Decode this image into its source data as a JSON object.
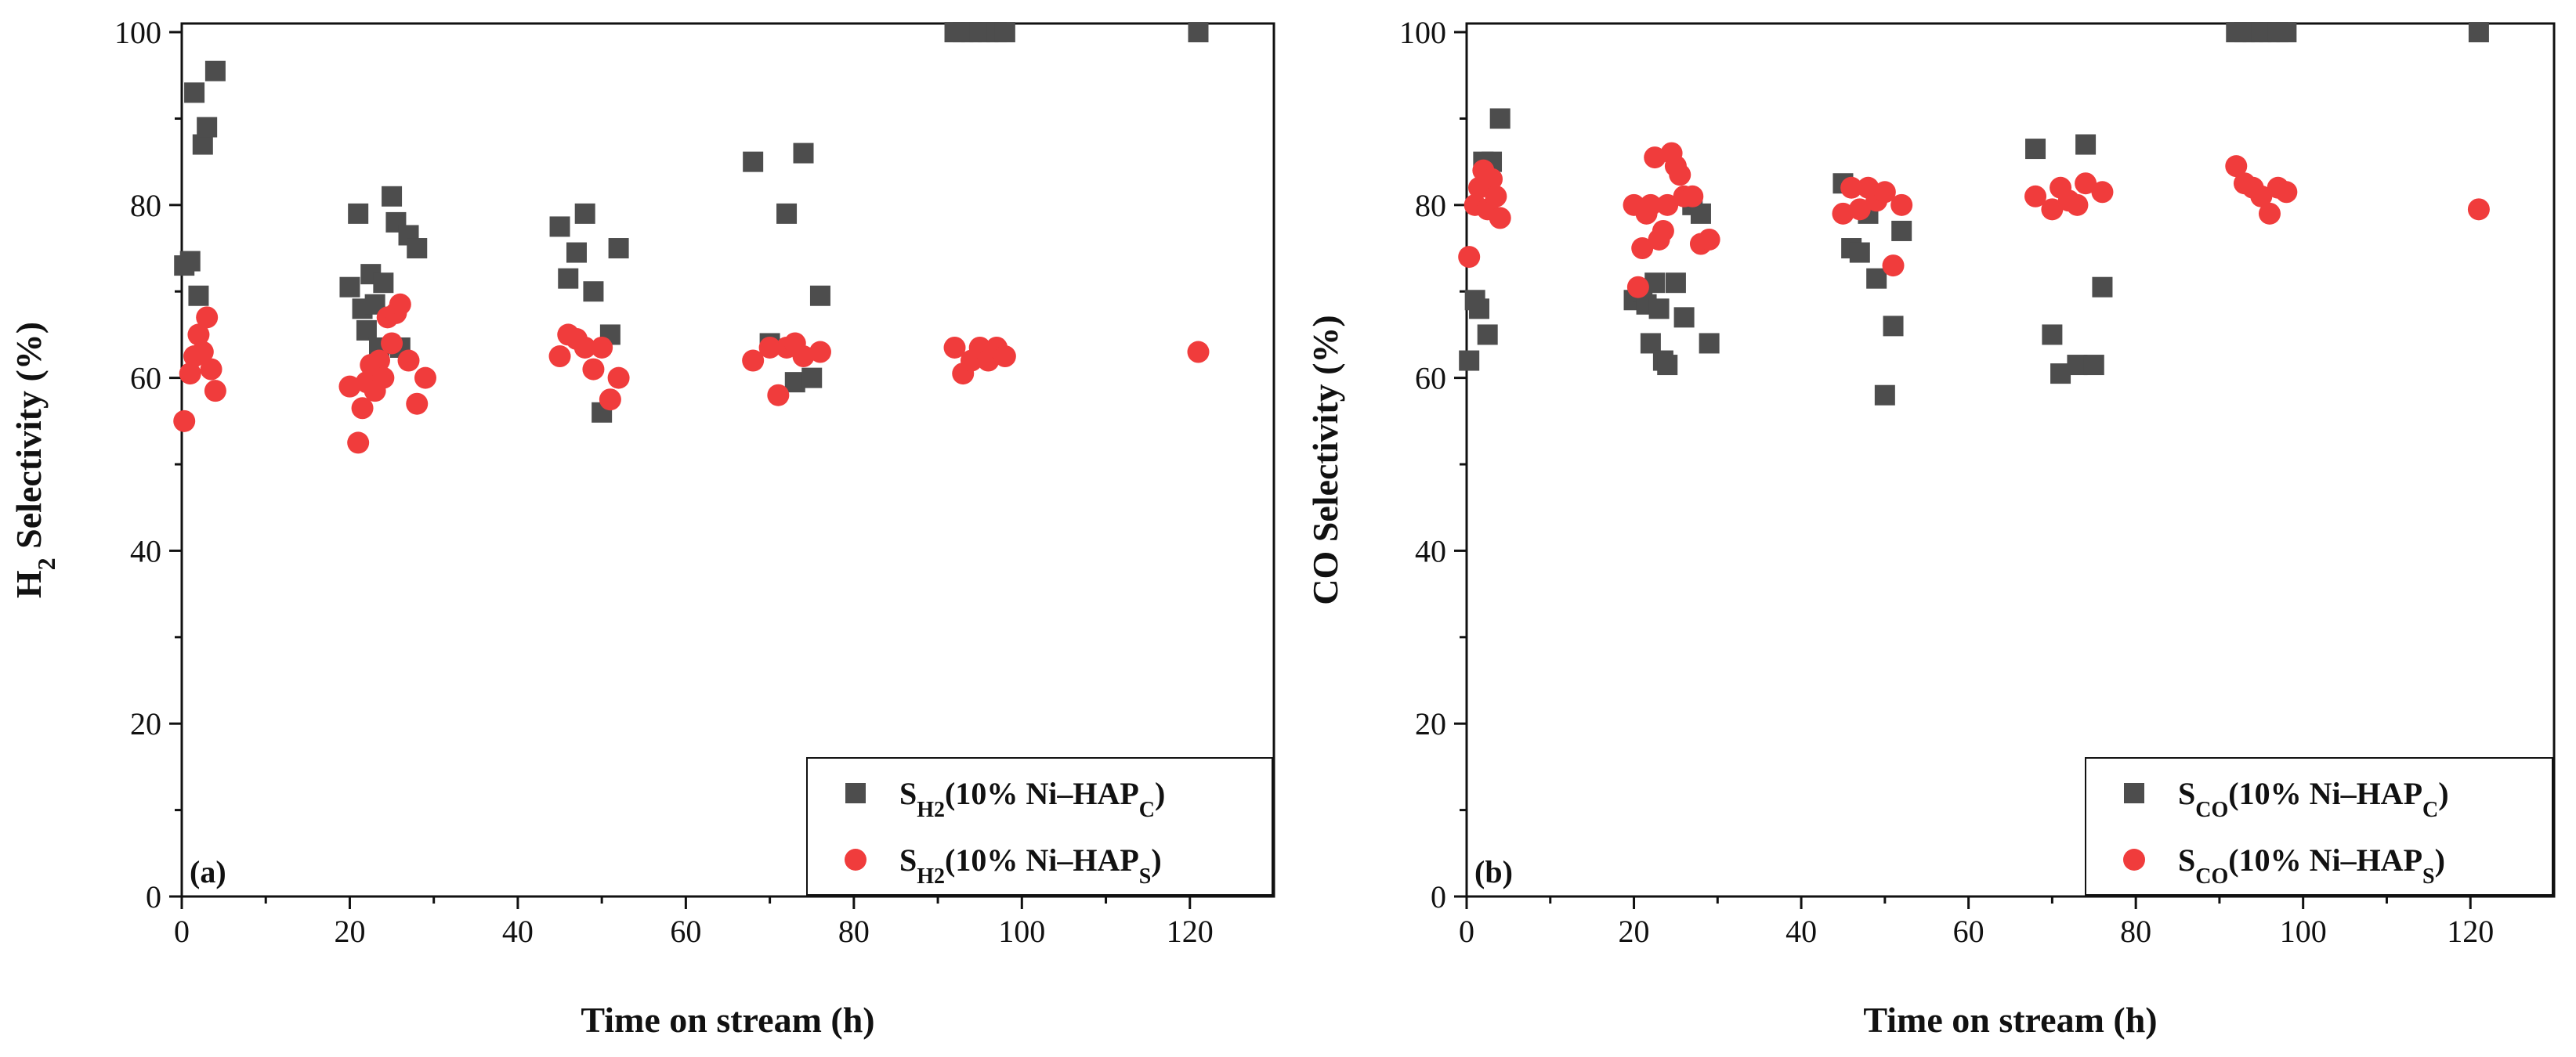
{
  "chart_data": [
    {
      "type": "scatter",
      "panel_label": "(a)",
      "xlabel": "Time on stream (h)",
      "ylabel": "H2 Selectivity (%)",
      "ylabel_parts": {
        "main": "H",
        "sub": "2",
        "rest": " Selectivity (%)"
      },
      "xlim": [
        0,
        130
      ],
      "ylim": [
        0,
        101
      ],
      "xticks": [
        0,
        20,
        40,
        60,
        80,
        100,
        120
      ],
      "yticks": [
        0,
        20,
        40,
        60,
        80,
        100
      ],
      "legend_position": "bottom-right",
      "series": [
        {
          "name": "SH2(10% Ni–HAPC)",
          "legend": {
            "s": "S",
            "sub1": "H2",
            "mid": "(10% Ni–HAP",
            "sub2": "C",
            "end": ")"
          },
          "marker": "square",
          "color": "#4d4d4d",
          "points": [
            [
              0.3,
              73
            ],
            [
              1,
              73.5
            ],
            [
              1.5,
              93
            ],
            [
              2,
              69.5
            ],
            [
              2.5,
              87
            ],
            [
              3,
              89
            ],
            [
              4,
              95.5
            ],
            [
              20,
              70.5
            ],
            [
              21,
              79
            ],
            [
              21.5,
              68
            ],
            [
              22,
              65.5
            ],
            [
              22.5,
              72
            ],
            [
              23,
              68.5
            ],
            [
              23.5,
              63.5
            ],
            [
              24,
              71
            ],
            [
              25,
              81
            ],
            [
              25.5,
              78
            ],
            [
              26,
              63.5
            ],
            [
              27,
              76.5
            ],
            [
              28,
              75
            ],
            [
              45,
              77.5
            ],
            [
              46,
              71.5
            ],
            [
              47,
              74.5
            ],
            [
              48,
              79
            ],
            [
              49,
              70
            ],
            [
              50,
              56
            ],
            [
              51,
              65
            ],
            [
              52,
              75
            ],
            [
              68,
              85
            ],
            [
              70,
              64
            ],
            [
              72,
              79
            ],
            [
              73,
              59.5
            ],
            [
              74,
              86
            ],
            [
              75,
              60
            ],
            [
              76,
              69.5
            ],
            [
              92,
              100
            ],
            [
              93,
              100
            ],
            [
              94,
              100
            ],
            [
              95,
              100
            ],
            [
              96,
              100
            ],
            [
              97,
              100
            ],
            [
              98,
              100
            ],
            [
              121,
              100
            ]
          ]
        },
        {
          "name": "SH2(10% Ni–HAPS)",
          "legend": {
            "s": "S",
            "sub1": "H2",
            "mid": "(10% Ni–HAP",
            "sub2": "S",
            "end": ")"
          },
          "marker": "circle",
          "color": "#f03c3c",
          "points": [
            [
              0.3,
              55
            ],
            [
              1,
              60.5
            ],
            [
              1.5,
              62.5
            ],
            [
              2,
              65
            ],
            [
              2.5,
              63
            ],
            [
              3,
              67
            ],
            [
              3.5,
              61
            ],
            [
              4,
              58.5
            ],
            [
              20,
              59
            ],
            [
              21,
              52.5
            ],
            [
              21.5,
              56.5
            ],
            [
              22,
              59.5
            ],
            [
              22.5,
              61.5
            ],
            [
              23,
              58.5
            ],
            [
              23.5,
              62
            ],
            [
              24,
              60
            ],
            [
              24.5,
              67
            ],
            [
              25,
              64
            ],
            [
              25.5,
              67.5
            ],
            [
              26,
              68.5
            ],
            [
              27,
              62
            ],
            [
              28,
              57
            ],
            [
              29,
              60
            ],
            [
              45,
              62.5
            ],
            [
              46,
              65
            ],
            [
              47,
              64.5
            ],
            [
              48,
              63.5
            ],
            [
              49,
              61
            ],
            [
              50,
              63.5
            ],
            [
              51,
              57.5
            ],
            [
              52,
              60
            ],
            [
              68,
              62
            ],
            [
              70,
              63.5
            ],
            [
              71,
              58
            ],
            [
              72,
              63.5
            ],
            [
              73,
              64
            ],
            [
              74,
              62.5
            ],
            [
              76,
              63
            ],
            [
              92,
              63.5
            ],
            [
              93,
              60.5
            ],
            [
              94,
              62
            ],
            [
              95,
              63.5
            ],
            [
              96,
              62
            ],
            [
              97,
              63.5
            ],
            [
              98,
              62.5
            ],
            [
              121,
              63
            ]
          ]
        }
      ]
    },
    {
      "type": "scatter",
      "panel_label": "(b)",
      "xlabel": "Time on stream (h)",
      "ylabel": "CO Selectivity (%)",
      "ylabel_parts": {
        "main": "CO Selectivity (%)",
        "sub": "",
        "rest": ""
      },
      "xlim": [
        0,
        130
      ],
      "ylim": [
        0,
        101
      ],
      "xticks": [
        0,
        20,
        40,
        60,
        80,
        100,
        120
      ],
      "yticks": [
        0,
        20,
        40,
        60,
        80,
        100
      ],
      "legend_position": "bottom-right",
      "series": [
        {
          "name": "SCO(10% Ni–HAPC)",
          "legend": {
            "s": "S",
            "sub1": "CO",
            "mid": "(10% Ni–HAP",
            "sub2": "C",
            "end": ")"
          },
          "marker": "square",
          "color": "#4d4d4d",
          "points": [
            [
              0.3,
              62
            ],
            [
              1,
              69
            ],
            [
              1.5,
              68
            ],
            [
              2,
              85
            ],
            [
              2.5,
              65
            ],
            [
              3,
              85
            ],
            [
              4,
              90
            ],
            [
              20,
              69
            ],
            [
              21,
              70
            ],
            [
              21.5,
              68.5
            ],
            [
              22,
              64
            ],
            [
              22.5,
              71
            ],
            [
              23,
              68
            ],
            [
              23.5,
              62
            ],
            [
              24,
              61.5
            ],
            [
              25,
              71
            ],
            [
              26,
              67
            ],
            [
              27,
              80
            ],
            [
              28,
              79
            ],
            [
              29,
              64
            ],
            [
              45,
              82.5
            ],
            [
              46,
              75
            ],
            [
              47,
              74.5
            ],
            [
              48,
              79
            ],
            [
              49,
              71.5
            ],
            [
              50,
              58
            ],
            [
              51,
              66
            ],
            [
              52,
              77
            ],
            [
              68,
              86.5
            ],
            [
              70,
              65
            ],
            [
              71,
              60.5
            ],
            [
              73,
              61.5
            ],
            [
              74,
              87
            ],
            [
              75,
              61.5
            ],
            [
              76,
              70.5
            ],
            [
              92,
              100
            ],
            [
              93,
              100
            ],
            [
              94,
              100
            ],
            [
              95,
              100
            ],
            [
              96,
              100
            ],
            [
              97,
              100
            ],
            [
              98,
              100
            ],
            [
              121,
              100
            ]
          ]
        },
        {
          "name": "SCO(10% Ni–HAPS)",
          "legend": {
            "s": "S",
            "sub1": "CO",
            "mid": "(10% Ni–HAP",
            "sub2": "S",
            "end": ")"
          },
          "marker": "circle",
          "color": "#f03c3c",
          "points": [
            [
              0.3,
              74
            ],
            [
              1,
              80
            ],
            [
              1.5,
              82
            ],
            [
              2,
              84
            ],
            [
              2.5,
              79.5
            ],
            [
              3,
              83
            ],
            [
              3.5,
              81
            ],
            [
              4,
              78.5
            ],
            [
              20,
              80
            ],
            [
              20.5,
              70.5
            ],
            [
              21,
              75
            ],
            [
              21.5,
              79
            ],
            [
              22,
              80
            ],
            [
              22.5,
              85.5
            ],
            [
              23,
              76
            ],
            [
              23.5,
              77
            ],
            [
              24,
              80
            ],
            [
              24.5,
              86
            ],
            [
              25,
              84.5
            ],
            [
              25.5,
              83.5
            ],
            [
              26,
              81
            ],
            [
              27,
              81
            ],
            [
              28,
              75.5
            ],
            [
              29,
              76
            ],
            [
              45,
              79
            ],
            [
              46,
              82
            ],
            [
              47,
              79.5
            ],
            [
              48,
              82
            ],
            [
              49,
              80.5
            ],
            [
              50,
              81.5
            ],
            [
              51,
              73
            ],
            [
              52,
              80
            ],
            [
              68,
              81
            ],
            [
              70,
              79.5
            ],
            [
              71,
              82
            ],
            [
              72,
              80.5
            ],
            [
              73,
              80
            ],
            [
              74,
              82.5
            ],
            [
              76,
              81.5
            ],
            [
              92,
              84.5
            ],
            [
              93,
              82.5
            ],
            [
              94,
              82
            ],
            [
              95,
              81
            ],
            [
              96,
              79
            ],
            [
              97,
              82
            ],
            [
              98,
              81.5
            ],
            [
              121,
              79.5
            ]
          ]
        }
      ]
    }
  ]
}
